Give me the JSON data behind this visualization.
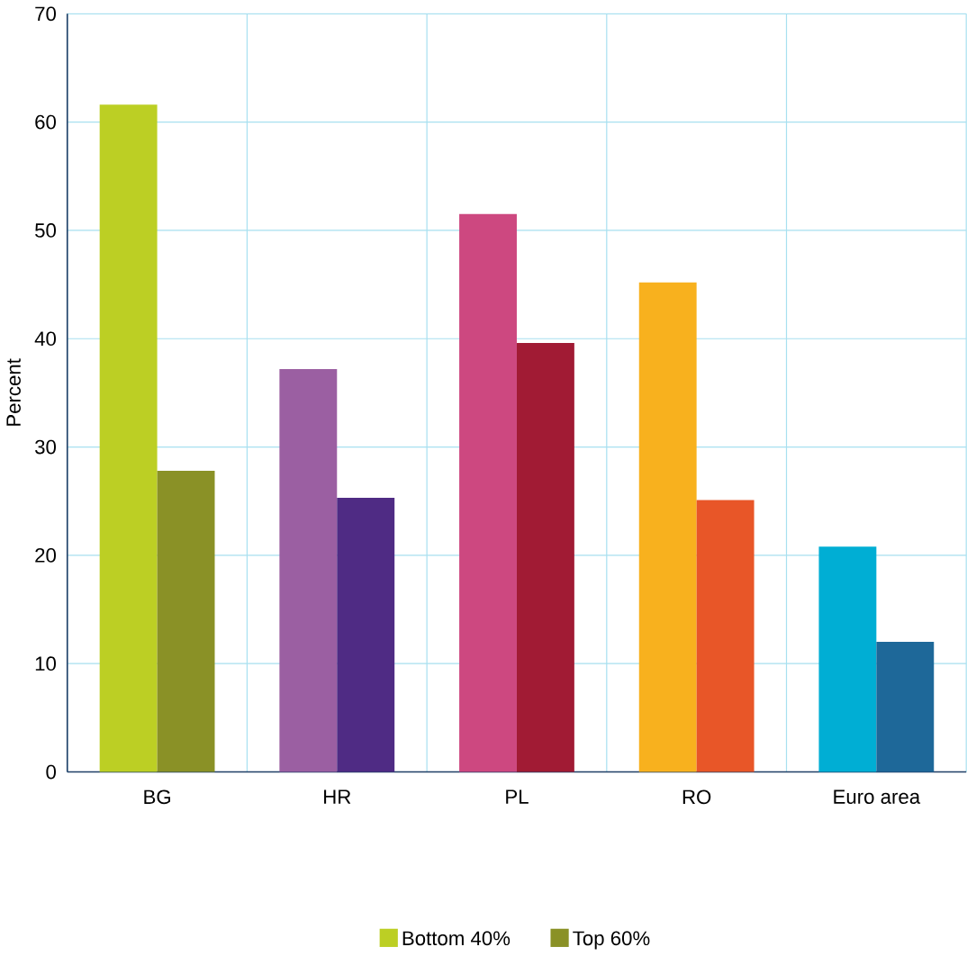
{
  "chart_data": {
    "type": "bar",
    "ylabel": "Percent",
    "categories": [
      "BG",
      "HR",
      "PL",
      "RO",
      "Euro area"
    ],
    "series": [
      {
        "name": "Bottom 40%",
        "color": "#bccf24",
        "colors": [
          "#bccf24",
          "#9b5fa2",
          "#cd4880",
          "#f8b11e",
          "#00aed4"
        ],
        "values": [
          61.6,
          37.2,
          51.5,
          45.2,
          20.8
        ]
      },
      {
        "name": "Top 60%",
        "color": "#8a9126",
        "colors": [
          "#8a9126",
          "#4f2b84",
          "#a11b34",
          "#e85628",
          "#1e6899"
        ],
        "values": [
          27.8,
          25.3,
          39.6,
          25.1,
          12.0
        ]
      }
    ],
    "ylim": [
      0,
      70
    ],
    "yticks": [
      0,
      10,
      20,
      30,
      40,
      50,
      60,
      70
    ],
    "grid": true,
    "legend": "bottom"
  }
}
